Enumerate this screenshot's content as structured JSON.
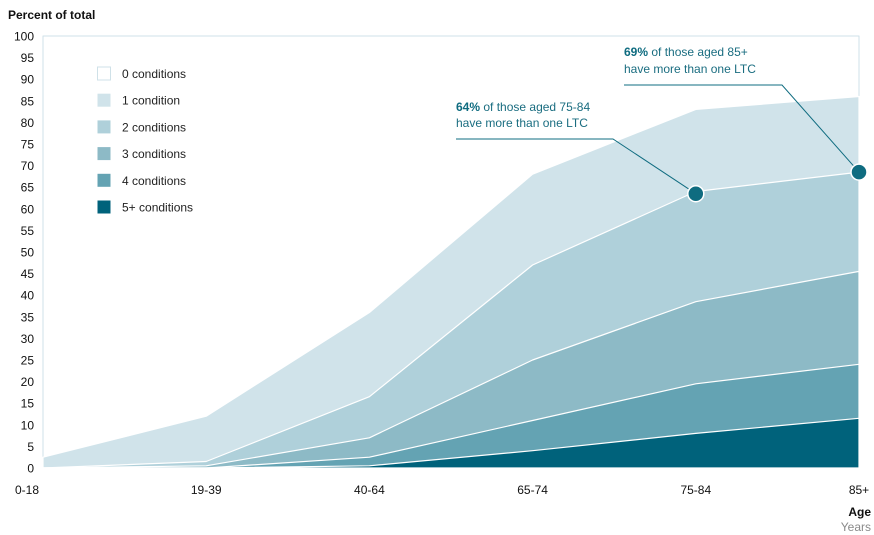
{
  "chart_data": {
    "type": "area",
    "ylabel": "Percent of total",
    "xlabel": "Age",
    "xunit": "Years",
    "categories": [
      "0-18",
      "19-39",
      "40-64",
      "65-74",
      "75-84",
      "85+"
    ],
    "ylim": [
      0,
      100
    ],
    "yticks": [
      0,
      5,
      10,
      15,
      20,
      25,
      30,
      35,
      40,
      45,
      50,
      55,
      60,
      65,
      70,
      75,
      80,
      85,
      90,
      95,
      100
    ],
    "grid": false,
    "legend_position": "top-left",
    "stacked_cumulative": true,
    "series": [
      {
        "name": "0 conditions",
        "values": [
          100,
          100,
          100,
          100,
          100,
          100
        ],
        "color": "#ffffff"
      },
      {
        "name": "1 condition",
        "values": [
          2.5,
          12,
          36,
          68,
          83,
          86
        ],
        "color": "#d0e3ea"
      },
      {
        "name": "2 conditions",
        "values": [
          0,
          1.5,
          16.5,
          47,
          64,
          68.5
        ],
        "color": "#afd0da"
      },
      {
        "name": "3 conditions",
        "values": [
          0,
          0.5,
          7,
          25,
          38.5,
          45.5
        ],
        "color": "#8dbac6"
      },
      {
        "name": "4 conditions",
        "values": [
          0,
          0,
          2.5,
          11,
          19.5,
          24
        ],
        "color": "#64a3b3"
      },
      {
        "name": "5+ conditions",
        "values": [
          0,
          0,
          0.5,
          4,
          8,
          11.5
        ],
        "color": "#00627b"
      }
    ],
    "annotations": [
      {
        "bold": "64%",
        "line1_rest": " of those aged 75-84",
        "line2": "have more than one LTC",
        "category": "75-84",
        "value": 63.5
      },
      {
        "bold": "69%",
        "line1_rest": " of those aged 85+",
        "line2": "have more than one LTC",
        "category": "85+",
        "value": 68.5
      }
    ],
    "marker_color": "#0f6c80"
  }
}
